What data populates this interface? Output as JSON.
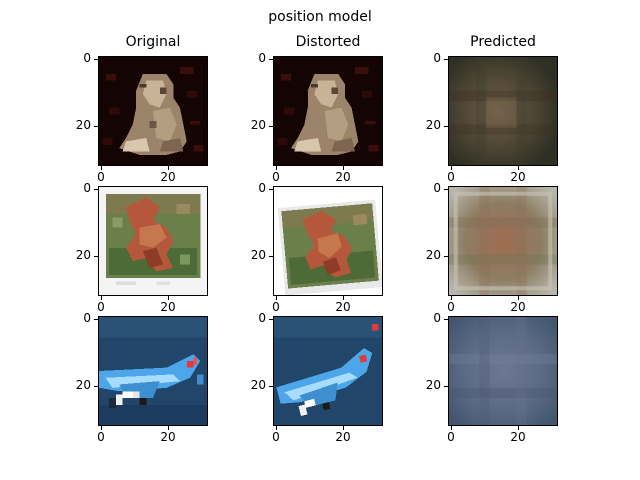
{
  "figure": {
    "suptitle": "position model",
    "columns": [
      {
        "title": "Original"
      },
      {
        "title": "Distorted"
      },
      {
        "title": "Predicted"
      }
    ],
    "axis_ticks": {
      "x": [
        "0",
        "20"
      ],
      "y": [
        "0",
        "20"
      ]
    },
    "rows": [
      {
        "subject": "frog",
        "original": "frog-original",
        "distorted": "frog-distorted",
        "predicted": "frog-predicted"
      },
      {
        "subject": "deer-photo",
        "original": "deer-original",
        "distorted": "deer-distorted",
        "predicted": "deer-predicted"
      },
      {
        "subject": "airplane",
        "original": "airplane-original",
        "distorted": "airplane-distorted",
        "predicted": "airplane-predicted"
      }
    ],
    "colors": {
      "frog_bg": "#1a0806",
      "frog_body": "#a48d72",
      "deer_bg": "#f3f3f3",
      "deer_grass": "#5d7a42",
      "deer_body": "#b4573a",
      "plane_sea": "#21496f",
      "plane_body": "#4aa4e6",
      "pred_frog": "#4a4535",
      "pred_deer": "#8d7a62",
      "pred_plane": "#5a6885"
    }
  }
}
